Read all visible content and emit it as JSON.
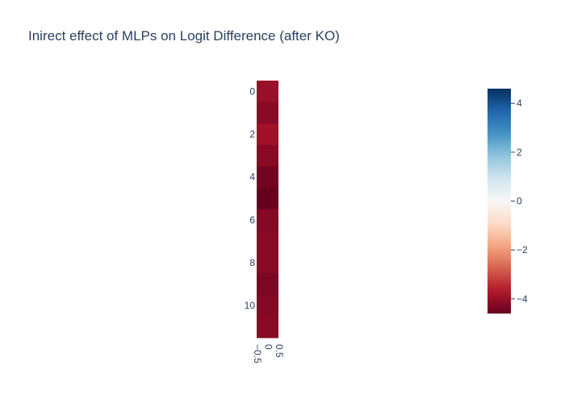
{
  "chart_data": {
    "type": "heatmap",
    "title": "Inirect effect of MLPs on Logit Difference (after KO)",
    "xlabel": "",
    "ylabel": "",
    "x": [
      0
    ],
    "y": [
      0,
      1,
      2,
      3,
      4,
      5,
      6,
      7,
      8,
      9,
      10,
      11
    ],
    "z": [
      [
        -4.0
      ],
      [
        -4.2
      ],
      [
        -3.9
      ],
      [
        -4.2
      ],
      [
        -4.45
      ],
      [
        -4.65
      ],
      [
        -4.25
      ],
      [
        -4.2
      ],
      [
        -4.2
      ],
      [
        -4.35
      ],
      [
        -4.25
      ],
      [
        -4.2
      ]
    ],
    "zmin": -4.6,
    "zmax": 4.6,
    "colorscale": [
      [
        0.0,
        "#67001f"
      ],
      [
        0.1,
        "#b2182b"
      ],
      [
        0.2,
        "#d6604d"
      ],
      [
        0.3,
        "#f4a582"
      ],
      [
        0.4,
        "#fddbc7"
      ],
      [
        0.5,
        "#f7f7f7"
      ],
      [
        0.6,
        "#d1e5f0"
      ],
      [
        0.7,
        "#92c5de"
      ],
      [
        0.8,
        "#4393c3"
      ],
      [
        0.9,
        "#2166ac"
      ],
      [
        1.0,
        "#053061"
      ]
    ],
    "xaxis_ticks": [
      {
        "value": -0.5,
        "label": "−0.5"
      },
      {
        "value": 0,
        "label": "0"
      },
      {
        "value": 0.5,
        "label": "0.5"
      }
    ],
    "yaxis_ticks": [
      {
        "value": 0,
        "label": "0"
      },
      {
        "value": 2,
        "label": "2"
      },
      {
        "value": 4,
        "label": "4"
      },
      {
        "value": 6,
        "label": "6"
      },
      {
        "value": 8,
        "label": "8"
      },
      {
        "value": 10,
        "label": "10"
      }
    ],
    "colorbar_ticks": [
      {
        "value": 4,
        "label": "4"
      },
      {
        "value": 2,
        "label": "2"
      },
      {
        "value": 0,
        "label": "0"
      },
      {
        "value": -2,
        "label": "−2"
      },
      {
        "value": -4,
        "label": "−4"
      }
    ],
    "grid": false,
    "legend": "colorbar-right"
  }
}
